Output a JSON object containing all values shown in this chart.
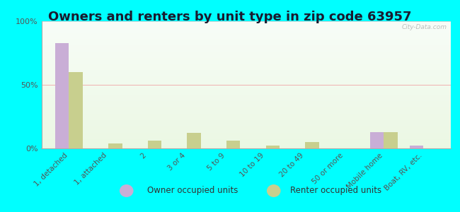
{
  "title": "Owners and renters by unit type in zip code 63957",
  "categories": [
    "1, detached",
    "1, attached",
    "2",
    "3 or 4",
    "5 to 9",
    "10 to 19",
    "20 to 49",
    "50 or more",
    "Mobile home",
    "Boat, RV, etc."
  ],
  "owner_values": [
    83,
    0,
    0,
    0,
    0,
    0,
    0,
    0,
    13,
    2
  ],
  "renter_values": [
    60,
    4,
    6,
    12,
    6,
    2,
    5,
    0,
    13,
    0
  ],
  "owner_color": "#c9aed6",
  "renter_color": "#c8cf8e",
  "background_color": "#00ffff",
  "ylabel_ticks": [
    "0%",
    "50%",
    "100%"
  ],
  "ytick_vals": [
    0,
    50,
    100
  ],
  "ylim": [
    0,
    100
  ],
  "title_fontsize": 13,
  "tick_label_fontsize": 7.5,
  "watermark": "City-Data.com",
  "legend_owner": "Owner occupied units",
  "legend_renter": "Renter occupied units",
  "bar_width": 0.35
}
